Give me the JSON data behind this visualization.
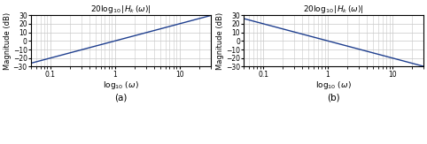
{
  "title": "$20 \\log_{10} |H_k\\,(\\omega)|$",
  "xlabel": "$\\log_{10}\\,(\\omega)$",
  "ylabel": "Magnitude (dB)",
  "omega_min": 0.05,
  "omega_max": 30.0,
  "ylim": [
    -30,
    30
  ],
  "yticks": [
    -30,
    -20,
    -10,
    0,
    10,
    20,
    30
  ],
  "xticks": [
    0.1,
    1,
    10
  ],
  "xticklabels": [
    "0.1",
    "1",
    "10"
  ],
  "line_color": "#1f3f8f",
  "line_width": 1.0,
  "grid_color": "#c8c8c8",
  "label_a": "(a)",
  "label_b": "(b)",
  "bg_color": "#ffffff",
  "axes_bg": "#ffffff"
}
